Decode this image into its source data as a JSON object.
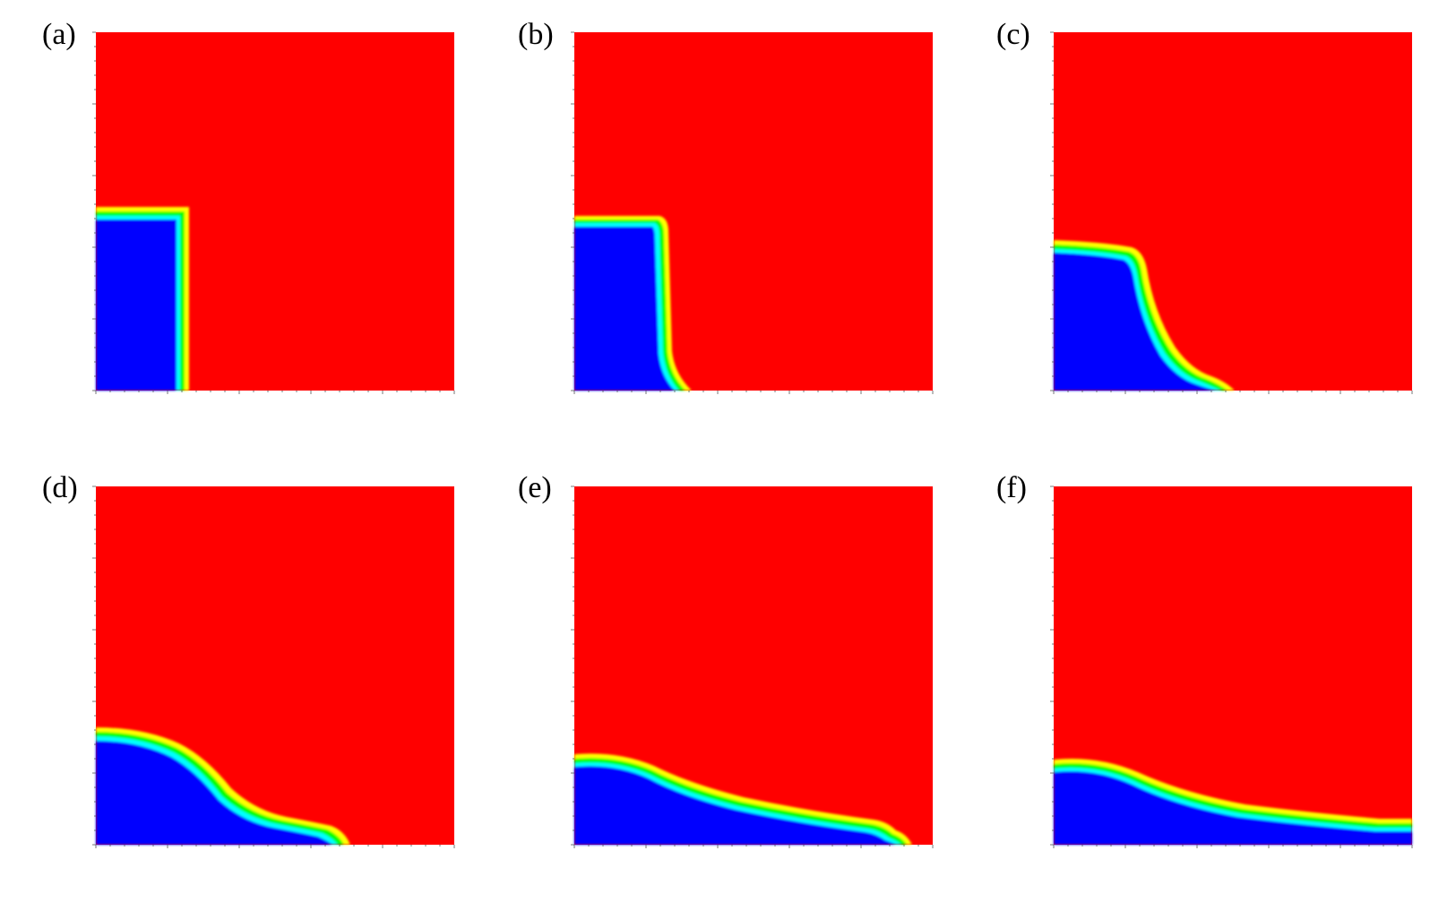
{
  "colors": {
    "red_phase": "#ff0000",
    "blue_phase": "#0000ff",
    "interface_gradient": [
      "#00ffff",
      "#00ff00",
      "#ffff00"
    ],
    "background": "#ffffff",
    "tick": "#555555"
  },
  "panels": [
    {
      "label": "(a)"
    },
    {
      "label": "(b)"
    },
    {
      "label": "(c)"
    },
    {
      "label": "(d)"
    },
    {
      "label": "(e)"
    },
    {
      "label": "(f)"
    }
  ]
}
